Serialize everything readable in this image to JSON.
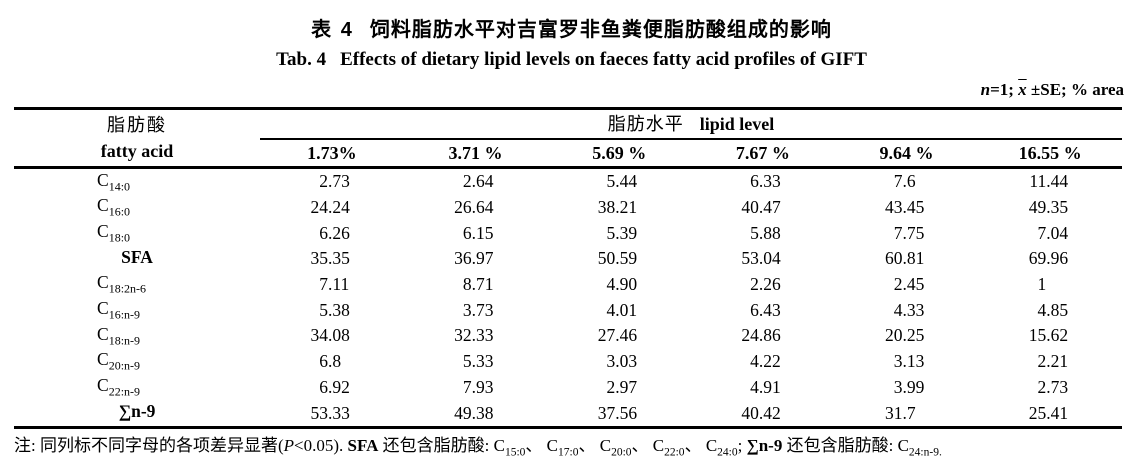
{
  "page": {
    "title_zh": {
      "label": "表 4",
      "text": "饲料脂肪水平对吉富罗非鱼粪便脂肪酸组成的影响"
    },
    "title_en": {
      "label": "Tab. 4",
      "text": "Effects of dietary lipid levels on faeces fatty acid profiles of GIFT"
    },
    "units_note": {
      "n": "n",
      "eq": "=1; ",
      "xbar": "x",
      "rest": " ±SE; % area"
    }
  },
  "table": {
    "header": {
      "fatty_acid_zh": "脂肪酸",
      "fatty_acid_en": "fatty acid",
      "group_zh": "脂肪水平",
      "group_en": "lipid level",
      "lipid_levels": [
        "1.73%",
        "3.71 %",
        "5.69 %",
        "7.67 %",
        "9.64 %",
        "16.55 %"
      ]
    },
    "rows": [
      {
        "base": "C",
        "sub": "14:0",
        "values": [
          "2.73",
          "2.64",
          "5.44",
          "6.33",
          "7.6",
          "11.44"
        ]
      },
      {
        "base": "C",
        "sub": "16:0",
        "values": [
          "24.24",
          "26.64",
          "38.21",
          "40.47",
          "43.45",
          "49.35"
        ]
      },
      {
        "base": "C",
        "sub": "18:0",
        "values": [
          "6.26",
          "6.15",
          "5.39",
          "5.88",
          "7.75",
          "7.04"
        ]
      },
      {
        "base": "SFA",
        "sub": "",
        "values": [
          "35.35",
          "36.97",
          "50.59",
          "53.04",
          "60.81",
          "69.96"
        ]
      },
      {
        "base": "C",
        "sub": "18:2n-6",
        "values": [
          "7.11",
          "8.71",
          "4.90",
          "2.26",
          "2.45",
          "1"
        ]
      },
      {
        "base": "C",
        "sub": "16:n-9",
        "values": [
          "5.38",
          "3.73",
          "4.01",
          "6.43",
          "4.33",
          "4.85"
        ]
      },
      {
        "base": "C",
        "sub": "18:n-9",
        "values": [
          "34.08",
          "32.33",
          "27.46",
          "24.86",
          "20.25",
          "15.62"
        ]
      },
      {
        "base": "C",
        "sub": "20:n-9",
        "values": [
          "6.8",
          "5.33",
          "3.03",
          "4.22",
          "3.13",
          "2.21"
        ]
      },
      {
        "base": "C",
        "sub": "22:n-9",
        "values": [
          "6.92",
          "7.93",
          "2.97",
          "4.91",
          "3.99",
          "2.73"
        ]
      },
      {
        "base": "∑n-9",
        "sub": "",
        "values": [
          "53.33",
          "49.38",
          "37.56",
          "40.42",
          "31.7",
          "25.41"
        ]
      }
    ]
  },
  "footnote": {
    "prefix": "注: 同列标不同字母的各项差异显著(",
    "p_symbol": "P",
    "after_p": "<0.05). ",
    "sfa_label": "SFA",
    "sfa_text": " 还包含脂肪酸: ",
    "acids": [
      {
        "base": "C",
        "sub": "15:0"
      },
      {
        "base": "C",
        "sub": "17:0"
      },
      {
        "base": "C",
        "sub": "20:0"
      },
      {
        "base": "C",
        "sub": "22:0"
      },
      {
        "base": "C",
        "sub": "24:0"
      }
    ],
    "sep": "、 ",
    "semi": "; ",
    "sum_label": "∑n-9",
    "sum_text": " 还包含脂肪酸: ",
    "last": {
      "base": "C",
      "sub": "24:n-9."
    }
  }
}
